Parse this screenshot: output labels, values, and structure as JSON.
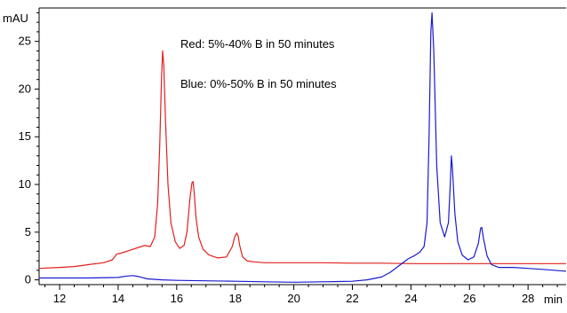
{
  "chart_data": {
    "type": "line",
    "title": "",
    "xlabel": "min",
    "ylabel": "mAU",
    "xlim": [
      11.3,
      29.3
    ],
    "ylim": [
      -0.5,
      28.5
    ],
    "x_ticks": [
      12,
      14,
      16,
      18,
      20,
      22,
      24,
      26,
      28
    ],
    "y_ticks": [
      0,
      5,
      10,
      15,
      20,
      25
    ],
    "grid": false,
    "legend": "none",
    "annotations": [
      "Red: 5%-40% B in 50 minutes",
      "Blue: 0%-50% B in 50 minutes"
    ],
    "series": [
      {
        "color": "#e0201c",
        "x": [
          11.3,
          12.0,
          12.5,
          13.0,
          13.5,
          13.8,
          13.95,
          14.1,
          14.4,
          14.7,
          14.9,
          15.1,
          15.25,
          15.35,
          15.42,
          15.48,
          15.52,
          15.56,
          15.62,
          15.7,
          15.8,
          15.95,
          16.1,
          16.25,
          16.35,
          16.45,
          16.52,
          16.56,
          16.6,
          16.66,
          16.75,
          16.9,
          17.1,
          17.4,
          17.7,
          17.9,
          17.98,
          18.05,
          18.1,
          18.15,
          18.25,
          18.4,
          18.6,
          19.0,
          20.0,
          21.0,
          22.0,
          23.0,
          24.0,
          25.0,
          26.0,
          27.0,
          28.0,
          29.3
        ],
        "y": [
          1.2,
          1.3,
          1.4,
          1.6,
          1.8,
          2.1,
          2.7,
          2.8,
          3.1,
          3.4,
          3.6,
          3.5,
          4.5,
          8.0,
          14.0,
          21.0,
          24.0,
          22.5,
          16.5,
          10.0,
          6.0,
          4.0,
          3.3,
          3.6,
          5.0,
          8.5,
          10.2,
          10.3,
          9.0,
          6.5,
          4.5,
          3.2,
          2.6,
          2.3,
          2.4,
          3.5,
          4.5,
          4.9,
          4.6,
          3.6,
          2.4,
          2.0,
          1.9,
          1.8,
          1.8,
          1.8,
          1.75,
          1.75,
          1.7,
          1.7,
          1.7,
          1.7,
          1.7,
          1.7
        ]
      },
      {
        "color": "#1a1ad0",
        "x": [
          11.3,
          12.0,
          13.0,
          14.0,
          14.3,
          14.5,
          14.7,
          15.0,
          15.5,
          16.0,
          17.0,
          18.0,
          19.0,
          20.0,
          21.0,
          22.0,
          22.5,
          23.0,
          23.3,
          23.6,
          23.9,
          24.1,
          24.3,
          24.45,
          24.55,
          24.62,
          24.68,
          24.72,
          24.78,
          24.88,
          25.0,
          25.15,
          25.28,
          25.35,
          25.38,
          25.42,
          25.5,
          25.6,
          25.75,
          25.95,
          26.15,
          26.3,
          26.38,
          26.42,
          26.48,
          26.6,
          26.75,
          27.0,
          27.5,
          28.0,
          28.5,
          29.3
        ],
        "y": [
          0.2,
          0.2,
          0.2,
          0.25,
          0.4,
          0.45,
          0.35,
          0.1,
          0.0,
          -0.05,
          -0.1,
          -0.15,
          -0.2,
          -0.25,
          -0.2,
          -0.15,
          0.0,
          0.3,
          0.8,
          1.5,
          2.2,
          2.5,
          2.9,
          3.5,
          6.0,
          15.0,
          26.0,
          28.0,
          24.0,
          12.0,
          6.0,
          4.5,
          6.0,
          10.5,
          13.0,
          11.5,
          7.0,
          4.0,
          2.6,
          2.1,
          2.4,
          3.8,
          5.4,
          5.5,
          4.3,
          2.5,
          1.6,
          1.3,
          1.3,
          1.2,
          1.1,
          0.9
        ]
      }
    ]
  }
}
